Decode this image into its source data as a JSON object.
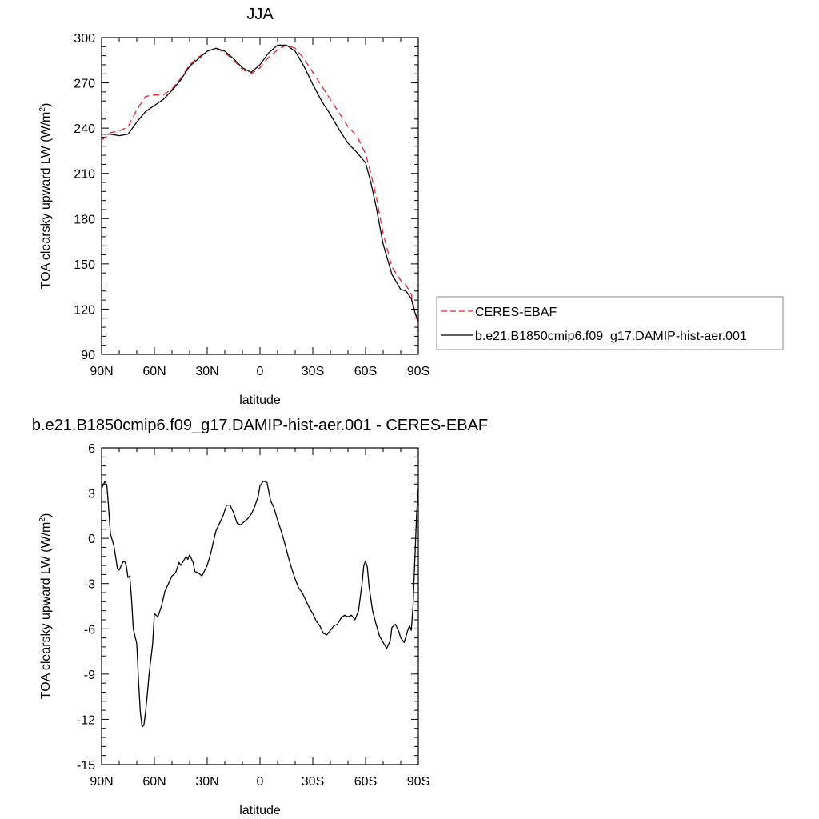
{
  "chart_data": [
    {
      "type": "line",
      "title": "JJA",
      "xlabel": "latitude",
      "ylabel_main": "TOA clearsky upward LW (W/m",
      "ylabel_sup": "2",
      "ylabel_end": ")",
      "x_range": [
        90,
        -90
      ],
      "ylim": [
        90,
        300
      ],
      "x_ticks": [
        90,
        60,
        30,
        0,
        -30,
        -60,
        -90
      ],
      "x_tick_labels": [
        "90N",
        "60N",
        "30N",
        "0",
        "30S",
        "60S",
        "90S"
      ],
      "y_ticks": [
        90,
        120,
        150,
        180,
        210,
        240,
        270,
        300
      ],
      "y_tick_labels": [
        "90",
        "120",
        "150",
        "180",
        "210",
        "240",
        "270",
        "300"
      ],
      "grid": false,
      "legend_position": "right, outside plot",
      "series": [
        {
          "name": "CERES-EBAF",
          "color": "#e8242c",
          "dash": "dashed",
          "x": [
            90,
            85,
            80,
            75,
            70,
            65,
            60,
            55,
            50,
            45,
            40,
            35,
            30,
            25,
            20,
            15,
            10,
            5,
            0,
            -5,
            -10,
            -15,
            -20,
            -25,
            -30,
            -35,
            -40,
            -45,
            -50,
            -55,
            -60,
            -63,
            -66,
            -70,
            -75,
            -80,
            -83,
            -86,
            -88,
            -90
          ],
          "values": [
            232,
            237,
            238,
            241,
            252,
            261,
            262,
            262,
            266,
            273,
            282,
            287,
            291,
            293,
            290,
            285,
            279,
            276,
            280,
            287,
            292,
            295,
            293,
            286,
            277,
            268,
            259,
            250,
            241,
            235,
            223,
            210,
            195,
            170,
            148,
            139,
            136,
            130,
            118,
            110
          ]
        },
        {
          "name": "b.e21.B1850cmip6.f09_g17.DAMIP-hist-aer.001",
          "color": "#000000",
          "dash": "solid",
          "x": [
            90,
            85,
            80,
            75,
            70,
            65,
            60,
            55,
            50,
            45,
            40,
            35,
            30,
            25,
            20,
            15,
            10,
            5,
            0,
            -5,
            -10,
            -15,
            -20,
            -25,
            -30,
            -35,
            -40,
            -45,
            -50,
            -55,
            -60,
            -63,
            -66,
            -70,
            -75,
            -80,
            -83,
            -86,
            -88,
            -90
          ],
          "values": [
            236,
            236,
            235,
            236,
            244,
            251,
            255,
            259,
            265,
            272,
            281,
            286,
            291,
            293,
            291,
            286,
            280,
            277,
            282,
            290,
            295,
            295,
            291,
            281,
            269,
            258,
            249,
            239,
            230,
            224,
            217,
            204,
            188,
            163,
            143,
            133,
            132,
            127,
            118,
            112
          ]
        }
      ]
    },
    {
      "type": "line",
      "title": "b.e21.B1850cmip6.f09_g17.DAMIP-hist-aer.001 - CERES-EBAF",
      "xlabel": "latitude",
      "ylabel_main": "TOA clearsky upward LW (W/m",
      "ylabel_sup": "2",
      "ylabel_end": ")",
      "x_range": [
        90,
        -90
      ],
      "ylim": [
        -15,
        6
      ],
      "x_ticks": [
        90,
        60,
        30,
        0,
        -30,
        -60,
        -90
      ],
      "x_tick_labels": [
        "90N",
        "60N",
        "30N",
        "0",
        "30S",
        "60S",
        "90S"
      ],
      "y_ticks": [
        -15,
        -12,
        -9,
        -6,
        -3,
        0,
        3,
        6
      ],
      "y_tick_labels": [
        "-15",
        "-12",
        "-9",
        "-6",
        "-3",
        "0",
        "3",
        "6"
      ],
      "grid": false,
      "series": [
        {
          "name": "",
          "color": "#000000",
          "dash": "solid",
          "x": [
            90,
            88,
            87,
            86,
            85,
            83,
            81,
            80,
            78,
            77,
            76,
            75,
            74,
            73,
            72,
            70,
            69,
            68,
            67,
            66,
            65,
            64,
            63,
            61,
            60,
            58,
            56,
            55,
            54,
            52,
            50,
            48,
            46,
            45,
            44,
            42,
            41,
            40,
            38,
            37,
            35,
            33,
            30,
            28,
            25,
            23,
            21,
            19,
            17,
            15,
            13,
            11,
            9,
            7,
            5,
            3,
            1,
            0,
            -2,
            -4,
            -6,
            -8,
            -10,
            -12,
            -14,
            -16,
            -18,
            -20,
            -22,
            -24,
            -26,
            -28,
            -30,
            -32,
            -34,
            -36,
            -38,
            -40,
            -42,
            -44,
            -46,
            -48,
            -50,
            -52,
            -54,
            -56,
            -58,
            -59,
            -60,
            -61,
            -62,
            -64,
            -66,
            -68,
            -70,
            -72,
            -74,
            -75,
            -77,
            -79,
            -80,
            -82,
            -84,
            -85,
            -86,
            -87,
            -88,
            -89,
            -90
          ],
          "values": [
            3.3,
            3.8,
            3.5,
            2.0,
            0.3,
            -0.5,
            -2.0,
            -2.1,
            -1.6,
            -1.5,
            -1.8,
            -2.6,
            -2.5,
            -4.0,
            -6.0,
            -7.0,
            -9.5,
            -11.5,
            -12.5,
            -12.4,
            -11.5,
            -10.3,
            -9.0,
            -7.0,
            -5.0,
            -5.2,
            -4.5,
            -4.0,
            -3.5,
            -3.0,
            -2.5,
            -2.3,
            -1.6,
            -1.8,
            -1.6,
            -1.2,
            -1.4,
            -1.1,
            -1.6,
            -2.2,
            -2.3,
            -2.5,
            -1.8,
            -1.0,
            0.5,
            1.0,
            1.5,
            2.2,
            2.2,
            1.7,
            1.0,
            0.9,
            1.1,
            1.3,
            1.6,
            2.1,
            2.8,
            3.5,
            3.8,
            3.7,
            2.5,
            2.0,
            1.2,
            0.5,
            -0.3,
            -1.2,
            -2.0,
            -2.7,
            -3.3,
            -3.6,
            -4.1,
            -4.6,
            -5.0,
            -5.5,
            -5.8,
            -6.3,
            -6.4,
            -6.1,
            -5.8,
            -5.7,
            -5.3,
            -5.1,
            -5.2,
            -5.1,
            -5.4,
            -4.8,
            -3.0,
            -1.8,
            -1.5,
            -1.9,
            -3.2,
            -4.8,
            -5.7,
            -6.5,
            -6.9,
            -7.3,
            -6.8,
            -5.9,
            -5.7,
            -6.2,
            -6.6,
            -6.9,
            -6.1,
            -5.8,
            -6.1,
            -4.5,
            -1.5,
            1.5,
            3.3
          ]
        }
      ]
    }
  ]
}
